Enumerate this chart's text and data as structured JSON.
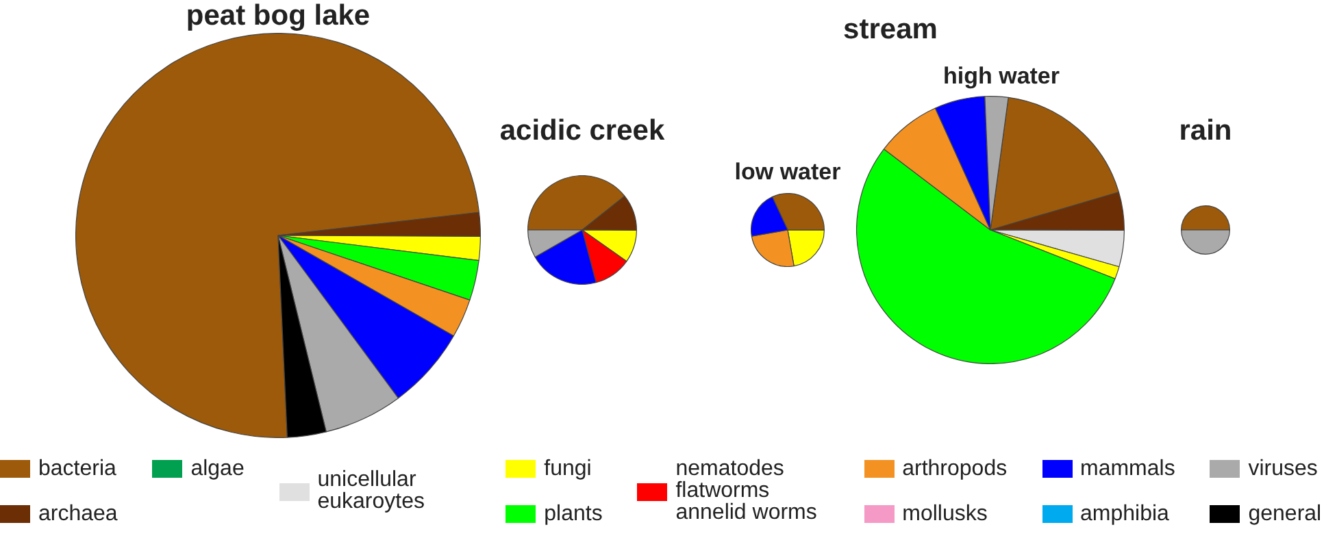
{
  "chart_data": {
    "type": "pie",
    "legend": "bottom",
    "categories": [
      "bacteria",
      "archaea",
      "algae",
      "unicellular eukaroytes",
      "fungi",
      "plants",
      "nematodes flatworms annelid worms",
      "arthropods",
      "mollusks",
      "mammals",
      "amphibia",
      "viruses",
      "general"
    ],
    "colors": [
      "#9c5a0a",
      "#6b2e05",
      "#00a050",
      "#e0e0e0",
      "#ffff00",
      "#00ff00",
      "#ff0000",
      "#f39222",
      "#f59ac6",
      "#0000ff",
      "#00aaee",
      "#aaaaaa",
      "#000000"
    ],
    "series": [
      {
        "name": "peat bog lake",
        "values": [
          73.9,
          1.9,
          0,
          0,
          1.9,
          3.2,
          0,
          3.1,
          0,
          6.6,
          0,
          6.3,
          3.1
        ]
      },
      {
        "name": "acidic creek",
        "values": [
          39.3,
          10.8,
          0,
          0,
          9.7,
          0,
          11.1,
          0,
          0,
          20.8,
          0,
          8.3,
          0
        ]
      },
      {
        "name": "low water",
        "values": [
          32.0,
          0,
          0,
          0,
          22.2,
          0,
          0,
          25.0,
          0,
          20.8,
          0,
          0,
          0
        ]
      },
      {
        "name": "high water",
        "values": [
          18.3,
          4.6,
          0,
          4.4,
          1.5,
          54.4,
          0,
          7.9,
          0,
          6.1,
          0,
          2.8,
          0
        ]
      },
      {
        "name": "rain",
        "values": [
          50,
          0,
          0,
          0,
          0,
          0,
          0,
          0,
          0,
          0,
          0,
          50,
          0
        ]
      }
    ],
    "annotations": [
      "stream"
    ]
  }
}
